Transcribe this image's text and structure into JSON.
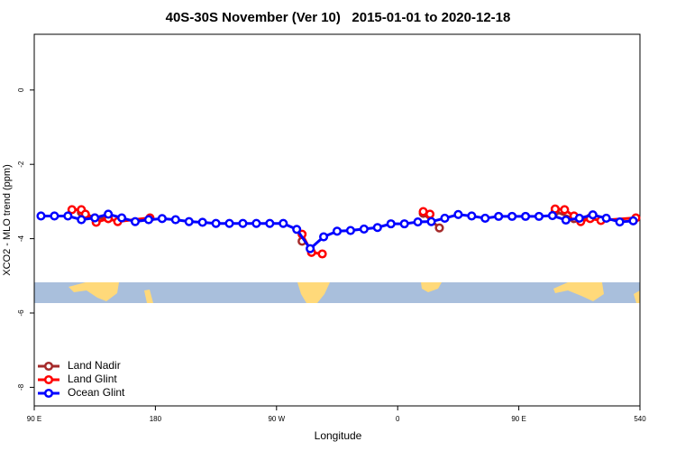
{
  "chart_data": {
    "type": "line",
    "title": "40S-30S November (Ver 10)   2015-01-01 to 2020-12-18",
    "xlabel": "Longitude",
    "ylabel": "XCO2 - MLO trend (ppm)",
    "xlim": [
      90,
      540
    ],
    "ylim": [
      -8.5,
      1.5
    ],
    "xticks": [
      {
        "value": 90,
        "label": "90 E"
      },
      180,
      {
        "value": 270,
        "label": "90 W"
      },
      {
        "value": 360,
        "label": "0"
      },
      {
        "value": 450,
        "label": "90 E"
      },
      540
    ],
    "yticks": [
      0,
      -2,
      -4,
      -6,
      -8
    ],
    "legend": "bottom-left",
    "series": [
      {
        "name": "Land Nadir",
        "color": "#a52a2a",
        "x": [
          125,
          135,
          145,
          200,
          289,
          330,
          379,
          391,
          430,
          477,
          491,
          503
        ],
        "values": [
          -3.29,
          -3.44,
          -3.46,
          null,
          -4.07,
          null,
          -3.32,
          -3.71,
          null,
          -3.27,
          -3.46,
          -3.44
        ]
      },
      {
        "name": "Land Glint",
        "color": "#ff0000",
        "x": [
          118,
          125,
          128,
          136,
          145,
          152,
          176,
          230,
          289,
          296,
          304,
          340,
          379,
          384,
          430,
          477,
          484,
          491,
          496,
          503,
          511,
          537
        ],
        "values": [
          -3.22,
          -3.22,
          -3.34,
          -3.56,
          -3.46,
          -3.54,
          -3.44,
          null,
          -3.88,
          -4.37,
          -4.41,
          null,
          -3.27,
          -3.34,
          null,
          -3.2,
          -3.22,
          -3.39,
          -3.54,
          -3.46,
          -3.51,
          -3.44
        ]
      },
      {
        "name": "Ocean Glint",
        "color": "#0000ff",
        "x": [
          95,
          105,
          115,
          125,
          135,
          145,
          155,
          165,
          175,
          185,
          195,
          205,
          215,
          225,
          235,
          245,
          255,
          265,
          275,
          285,
          295,
          305,
          315,
          325,
          335,
          345,
          355,
          365,
          375,
          385,
          395,
          405,
          415,
          425,
          435,
          445,
          455,
          465,
          475,
          485,
          495,
          505,
          515,
          525,
          535
        ],
        "values": [
          -3.39,
          -3.39,
          -3.39,
          -3.49,
          -3.44,
          -3.34,
          -3.44,
          -3.54,
          -3.49,
          -3.46,
          -3.49,
          -3.54,
          -3.56,
          -3.59,
          -3.59,
          -3.59,
          -3.59,
          -3.59,
          -3.59,
          -3.75,
          -4.27,
          -3.95,
          -3.8,
          -3.78,
          -3.74,
          -3.7,
          -3.6,
          -3.6,
          -3.55,
          -3.54,
          -3.45,
          -3.35,
          -3.39,
          -3.45,
          -3.4,
          -3.4,
          -3.4,
          -3.4,
          -3.38,
          -3.5,
          -3.45,
          -3.36,
          -3.45,
          -3.55,
          -3.52
        ]
      }
    ]
  }
}
